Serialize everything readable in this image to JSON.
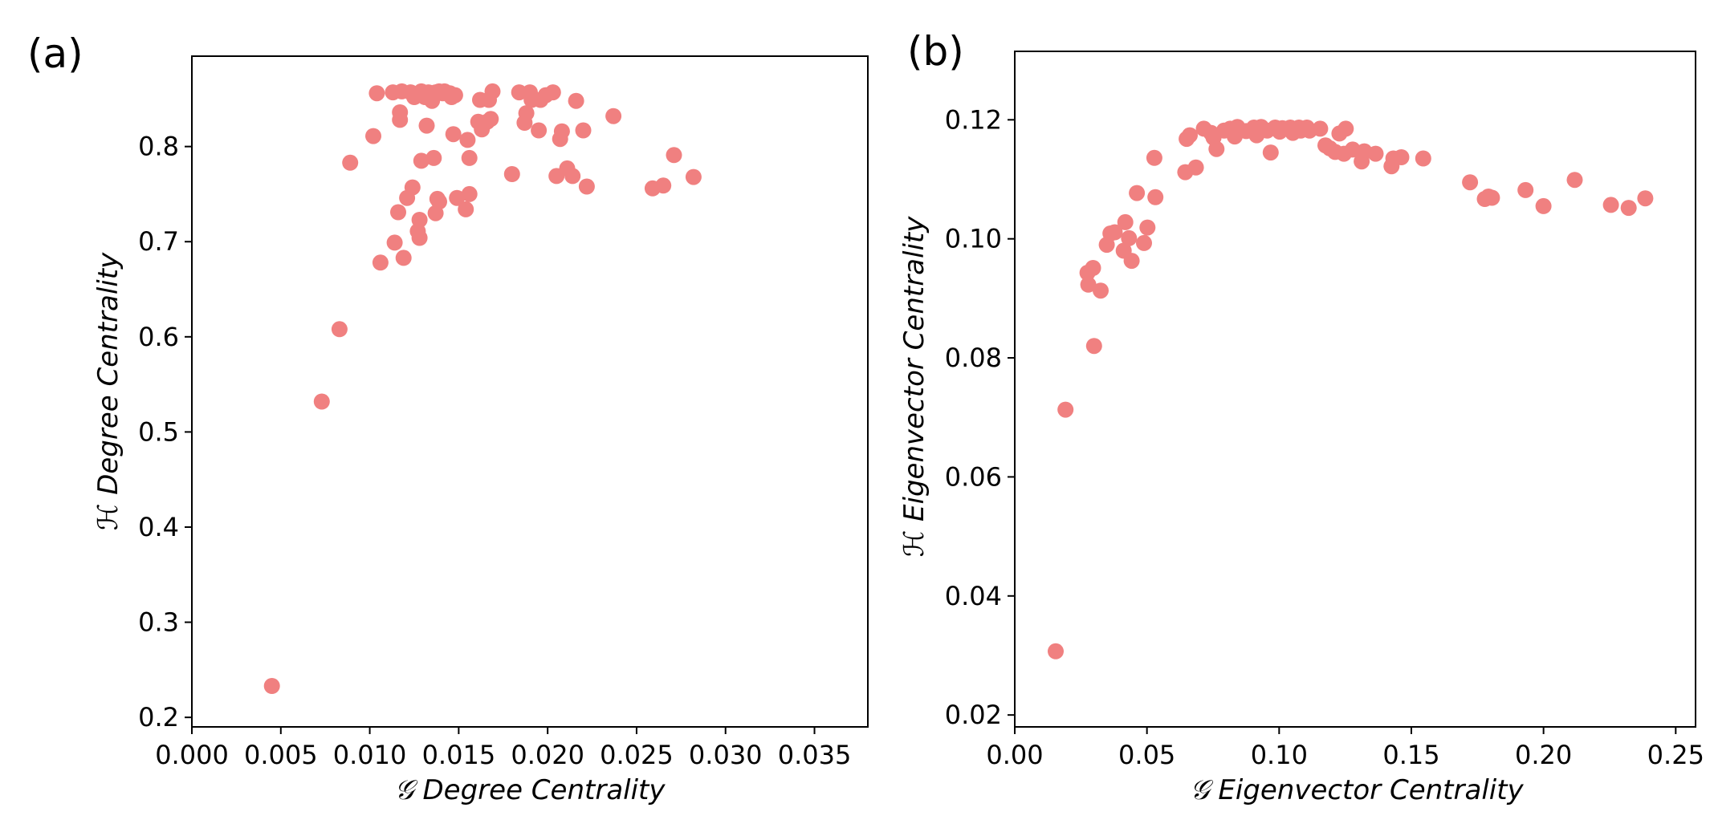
{
  "chart_data": [
    {
      "type": "scatter",
      "panel_label": "(a)",
      "xlabel": "𝒢 Degree Centrality",
      "ylabel": "ℋ Degree Centrality",
      "xlim": [
        0.0,
        0.038
      ],
      "ylim": [
        0.19,
        0.895
      ],
      "xticks": [
        0.0,
        0.005,
        0.01,
        0.015,
        0.02,
        0.025,
        0.03,
        0.035
      ],
      "xtick_labels": [
        "0.000",
        "0.005",
        "0.010",
        "0.015",
        "0.020",
        "0.025",
        "0.030",
        "0.035"
      ],
      "yticks": [
        0.2,
        0.3,
        0.4,
        0.5,
        0.6,
        0.7,
        0.8
      ],
      "ytick_labels": [
        "0.2",
        "0.3",
        "0.4",
        "0.5",
        "0.6",
        "0.7",
        "0.8"
      ],
      "marker_color": "#f08080",
      "points": [
        [
          0.0045,
          0.233
        ],
        [
          0.0073,
          0.532
        ],
        [
          0.0083,
          0.608
        ],
        [
          0.0089,
          0.783
        ],
        [
          0.0102,
          0.811
        ],
        [
          0.0104,
          0.856
        ],
        [
          0.0106,
          0.678
        ],
        [
          0.0113,
          0.857
        ],
        [
          0.0114,
          0.699
        ],
        [
          0.0116,
          0.731
        ],
        [
          0.0117,
          0.836
        ],
        [
          0.0117,
          0.828
        ],
        [
          0.0118,
          0.858
        ],
        [
          0.0119,
          0.683
        ],
        [
          0.0121,
          0.746
        ],
        [
          0.0123,
          0.857
        ],
        [
          0.0124,
          0.757
        ],
        [
          0.0125,
          0.852
        ],
        [
          0.0127,
          0.855
        ],
        [
          0.0127,
          0.711
        ],
        [
          0.0128,
          0.704
        ],
        [
          0.0128,
          0.723
        ],
        [
          0.0129,
          0.785
        ],
        [
          0.0129,
          0.858
        ],
        [
          0.0131,
          0.852
        ],
        [
          0.0132,
          0.822
        ],
        [
          0.0133,
          0.857
        ],
        [
          0.0135,
          0.848
        ],
        [
          0.0136,
          0.788
        ],
        [
          0.0137,
          0.857
        ],
        [
          0.0137,
          0.73
        ],
        [
          0.0138,
          0.745
        ],
        [
          0.0139,
          0.742
        ],
        [
          0.0139,
          0.858
        ],
        [
          0.0141,
          0.856
        ],
        [
          0.0142,
          0.858
        ],
        [
          0.0145,
          0.856
        ],
        [
          0.0146,
          0.852
        ],
        [
          0.0147,
          0.813
        ],
        [
          0.0148,
          0.854
        ],
        [
          0.0149,
          0.746
        ],
        [
          0.0154,
          0.734
        ],
        [
          0.0155,
          0.807
        ],
        [
          0.0156,
          0.75
        ],
        [
          0.0156,
          0.788
        ],
        [
          0.0161,
          0.826
        ],
        [
          0.0162,
          0.849
        ],
        [
          0.0163,
          0.818
        ],
        [
          0.0166,
          0.826
        ],
        [
          0.0167,
          0.849
        ],
        [
          0.0168,
          0.829
        ],
        [
          0.0169,
          0.858
        ],
        [
          0.018,
          0.771
        ],
        [
          0.0184,
          0.857
        ],
        [
          0.0187,
          0.825
        ],
        [
          0.0188,
          0.835
        ],
        [
          0.019,
          0.857
        ],
        [
          0.0191,
          0.849
        ],
        [
          0.0195,
          0.817
        ],
        [
          0.0196,
          0.849
        ],
        [
          0.0199,
          0.854
        ],
        [
          0.0203,
          0.857
        ],
        [
          0.0205,
          0.769
        ],
        [
          0.0207,
          0.808
        ],
        [
          0.0208,
          0.816
        ],
        [
          0.0211,
          0.777
        ],
        [
          0.0214,
          0.769
        ],
        [
          0.0216,
          0.848
        ],
        [
          0.022,
          0.817
        ],
        [
          0.0222,
          0.758
        ],
        [
          0.0237,
          0.832
        ],
        [
          0.0259,
          0.756
        ],
        [
          0.0265,
          0.759
        ],
        [
          0.0271,
          0.791
        ],
        [
          0.0282,
          0.768
        ]
      ]
    },
    {
      "type": "scatter",
      "panel_label": "(b)",
      "xlabel": "𝒢 Eigenvector Centrality",
      "ylabel": "ℋ Eigenvector Centrality",
      "xlim": [
        0.0,
        0.2575
      ],
      "ylim": [
        0.018,
        0.1315
      ],
      "xticks": [
        0.0,
        0.05,
        0.1,
        0.15,
        0.2,
        0.25
      ],
      "xtick_labels": [
        "0.00",
        "0.05",
        "0.10",
        "0.15",
        "0.20",
        "0.25"
      ],
      "yticks": [
        0.02,
        0.04,
        0.06,
        0.08,
        0.1,
        0.12
      ],
      "ytick_labels": [
        "0.02",
        "0.04",
        "0.06",
        "0.08",
        "0.10",
        "0.12"
      ],
      "marker_color": "#f08080",
      "points": [
        [
          0.0155,
          0.0307
        ],
        [
          0.0192,
          0.0713
        ],
        [
          0.0275,
          0.0943
        ],
        [
          0.0278,
          0.0923
        ],
        [
          0.0296,
          0.0951
        ],
        [
          0.03,
          0.082
        ],
        [
          0.0325,
          0.0913
        ],
        [
          0.0348,
          0.099
        ],
        [
          0.0362,
          0.1009
        ],
        [
          0.0378,
          0.1011
        ],
        [
          0.0412,
          0.098
        ],
        [
          0.0418,
          0.1028
        ],
        [
          0.0432,
          0.1001
        ],
        [
          0.0442,
          0.0963
        ],
        [
          0.0462,
          0.1077
        ],
        [
          0.0489,
          0.0993
        ],
        [
          0.0502,
          0.1019
        ],
        [
          0.0528,
          0.1136
        ],
        [
          0.0532,
          0.107
        ],
        [
          0.0645,
          0.1112
        ],
        [
          0.065,
          0.1168
        ],
        [
          0.0662,
          0.1174
        ],
        [
          0.0685,
          0.112
        ],
        [
          0.0715,
          0.1185
        ],
        [
          0.0742,
          0.1178
        ],
        [
          0.0752,
          0.117
        ],
        [
          0.0763,
          0.1151
        ],
        [
          0.0792,
          0.1182
        ],
        [
          0.0815,
          0.1185
        ],
        [
          0.0832,
          0.1172
        ],
        [
          0.0842,
          0.1188
        ],
        [
          0.0875,
          0.1181
        ],
        [
          0.0905,
          0.1187
        ],
        [
          0.0915,
          0.1174
        ],
        [
          0.0932,
          0.1188
        ],
        [
          0.0955,
          0.1182
        ],
        [
          0.0968,
          0.1145
        ],
        [
          0.0985,
          0.1187
        ],
        [
          0.1002,
          0.118
        ],
        [
          0.1012,
          0.1186
        ],
        [
          0.1042,
          0.1187
        ],
        [
          0.1052,
          0.1178
        ],
        [
          0.1075,
          0.1187
        ],
        [
          0.1082,
          0.1182
        ],
        [
          0.1105,
          0.1187
        ],
        [
          0.1115,
          0.1182
        ],
        [
          0.1155,
          0.1185
        ],
        [
          0.1175,
          0.1157
        ],
        [
          0.1192,
          0.1152
        ],
        [
          0.1212,
          0.1146
        ],
        [
          0.1228,
          0.1177
        ],
        [
          0.1245,
          0.1143
        ],
        [
          0.1252,
          0.1185
        ],
        [
          0.1278,
          0.115
        ],
        [
          0.1312,
          0.113
        ],
        [
          0.1322,
          0.1147
        ],
        [
          0.1365,
          0.1143
        ],
        [
          0.1425,
          0.1122
        ],
        [
          0.1432,
          0.1135
        ],
        [
          0.1462,
          0.1137
        ],
        [
          0.1545,
          0.1135
        ],
        [
          0.1722,
          0.1095
        ],
        [
          0.1778,
          0.1067
        ],
        [
          0.1792,
          0.1071
        ],
        [
          0.1805,
          0.1069
        ],
        [
          0.1932,
          0.1082
        ],
        [
          0.2,
          0.1055
        ],
        [
          0.2118,
          0.1099
        ],
        [
          0.2255,
          0.1057
        ],
        [
          0.2322,
          0.1052
        ],
        [
          0.2385,
          0.1068
        ]
      ]
    }
  ]
}
